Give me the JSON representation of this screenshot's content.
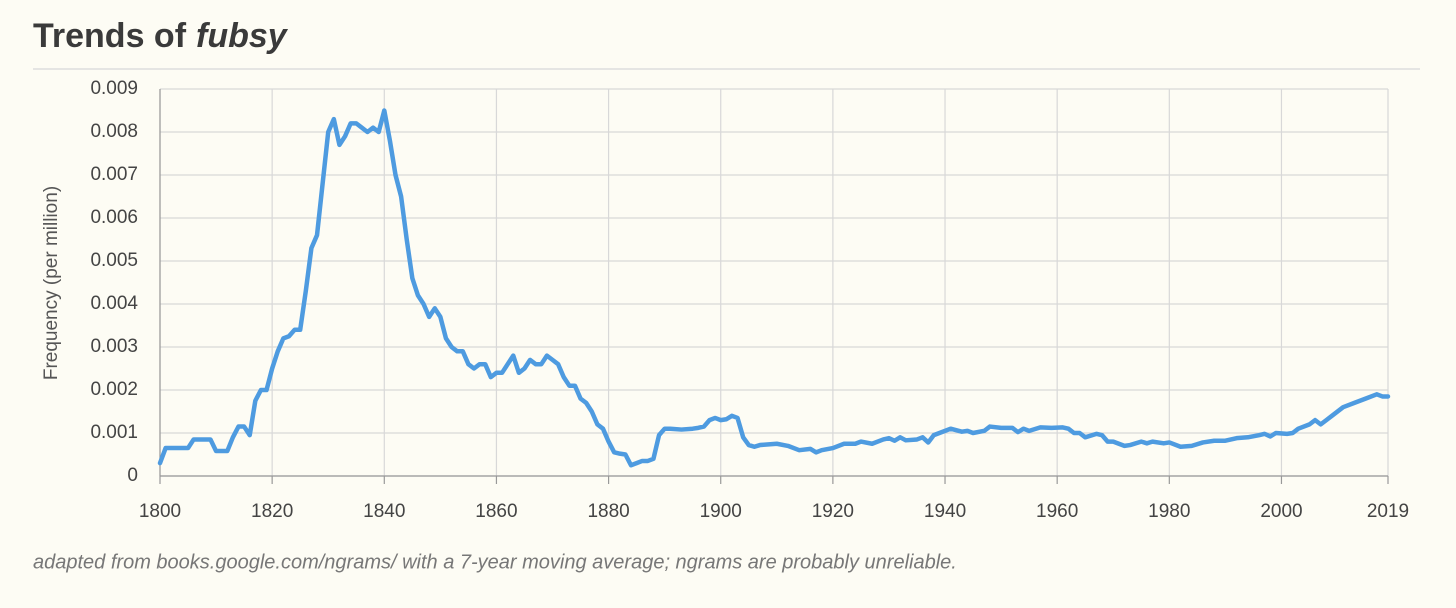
{
  "chart_data": {
    "type": "line",
    "title": "Trends of",
    "title_term": "fubsy",
    "ylabel": "Frequency (per million)",
    "note": "adapted from books.google.com/ngrams/ with a 7-year moving average; ngrams are probably unreliable.",
    "color": "#4e9be0",
    "grid": true,
    "xlim": [
      1800,
      2019
    ],
    "ylim": [
      0,
      0.009
    ],
    "xticks": [
      1800,
      1820,
      1840,
      1860,
      1880,
      1900,
      1920,
      1940,
      1960,
      1980,
      2000,
      2019
    ],
    "yticks": [
      0,
      0.001,
      0.002,
      0.003,
      0.004,
      0.005,
      0.006,
      0.007,
      0.008,
      0.009
    ],
    "x": [
      1800,
      1801,
      1805,
      1806,
      1809,
      1810,
      1812,
      1813,
      1814,
      1815,
      1816,
      1817,
      1818,
      1819,
      1820,
      1821,
      1822,
      1823,
      1824,
      1825,
      1826,
      1827,
      1828,
      1829,
      1830,
      1831,
      1832,
      1833,
      1834,
      1835,
      1836,
      1837,
      1838,
      1839,
      1840,
      1841,
      1842,
      1843,
      1844,
      1845,
      1846,
      1847,
      1848,
      1849,
      1850,
      1851,
      1852,
      1853,
      1854,
      1855,
      1856,
      1857,
      1858,
      1859,
      1860,
      1861,
      1862,
      1863,
      1864,
      1865,
      1866,
      1867,
      1868,
      1869,
      1870,
      1871,
      1872,
      1873,
      1874,
      1875,
      1876,
      1877,
      1878,
      1879,
      1880,
      1881,
      1882,
      1883,
      1884,
      1885,
      1886,
      1887,
      1888,
      1889,
      1890,
      1891,
      1893,
      1895,
      1896,
      1897,
      1898,
      1899,
      1900,
      1901,
      1902,
      1903,
      1904,
      1905,
      1906,
      1907,
      1910,
      1912,
      1914,
      1916,
      1917,
      1918,
      1920,
      1922,
      1924,
      1925,
      1927,
      1929,
      1930,
      1931,
      1932,
      1933,
      1935,
      1936,
      1937,
      1938,
      1940,
      1941,
      1943,
      1944,
      1945,
      1947,
      1948,
      1950,
      1952,
      1953,
      1954,
      1955,
      1957,
      1959,
      1961,
      1962,
      1963,
      1964,
      1965,
      1967,
      1968,
      1969,
      1970,
      1972,
      1973,
      1975,
      1976,
      1977,
      1979,
      1980,
      1982,
      1984,
      1986,
      1988,
      1990,
      1992,
      1994,
      1996,
      1997,
      1998,
      1999,
      2001,
      2002,
      2003,
      2005,
      2006,
      2007,
      2008,
      2009,
      2011,
      2013,
      2015,
      2017,
      2018,
      2019
    ],
    "values": [
      0.0003,
      0.00065,
      0.00065,
      0.00085,
      0.00085,
      0.00058,
      0.00058,
      0.0009,
      0.00115,
      0.00115,
      0.00095,
      0.00175,
      0.002,
      0.002,
      0.0025,
      0.0029,
      0.0032,
      0.00325,
      0.0034,
      0.0034,
      0.0043,
      0.0053,
      0.0056,
      0.0068,
      0.008,
      0.0083,
      0.0077,
      0.0079,
      0.0082,
      0.0082,
      0.0081,
      0.008,
      0.0081,
      0.008,
      0.0085,
      0.0078,
      0.007,
      0.0065,
      0.0055,
      0.0046,
      0.0042,
      0.004,
      0.0037,
      0.0039,
      0.0037,
      0.0032,
      0.003,
      0.0029,
      0.0029,
      0.0026,
      0.0025,
      0.0026,
      0.0026,
      0.0023,
      0.0024,
      0.0024,
      0.0026,
      0.0028,
      0.0024,
      0.0025,
      0.0027,
      0.0026,
      0.0026,
      0.0028,
      0.0027,
      0.0026,
      0.0023,
      0.0021,
      0.0021,
      0.0018,
      0.0017,
      0.0015,
      0.0012,
      0.0011,
      0.0008,
      0.00055,
      0.00052,
      0.0005,
      0.00025,
      0.0003,
      0.00035,
      0.00035,
      0.0004,
      0.00095,
      0.0011,
      0.0011,
      0.00108,
      0.0011,
      0.00112,
      0.00115,
      0.0013,
      0.00135,
      0.0013,
      0.00132,
      0.0014,
      0.00135,
      0.0009,
      0.00072,
      0.00068,
      0.00072,
      0.00075,
      0.0007,
      0.0006,
      0.00063,
      0.00055,
      0.0006,
      0.00065,
      0.00075,
      0.00075,
      0.0008,
      0.00075,
      0.00085,
      0.00088,
      0.00082,
      0.0009,
      0.00083,
      0.00085,
      0.0009,
      0.00078,
      0.00095,
      0.00105,
      0.0011,
      0.00103,
      0.00105,
      0.001,
      0.00105,
      0.00115,
      0.00112,
      0.00112,
      0.00102,
      0.0011,
      0.00105,
      0.00113,
      0.00112,
      0.00113,
      0.0011,
      0.001,
      0.001,
      0.0009,
      0.00098,
      0.00095,
      0.0008,
      0.0008,
      0.0007,
      0.00072,
      0.0008,
      0.00076,
      0.0008,
      0.00076,
      0.00078,
      0.00068,
      0.0007,
      0.00078,
      0.00082,
      0.00082,
      0.00088,
      0.0009,
      0.00095,
      0.00098,
      0.00092,
      0.001,
      0.00098,
      0.001,
      0.0011,
      0.0012,
      0.0013,
      0.0012,
      0.0013,
      0.0014,
      0.0016,
      0.0017,
      0.0018,
      0.0019,
      0.00185,
      0.00185
    ]
  }
}
